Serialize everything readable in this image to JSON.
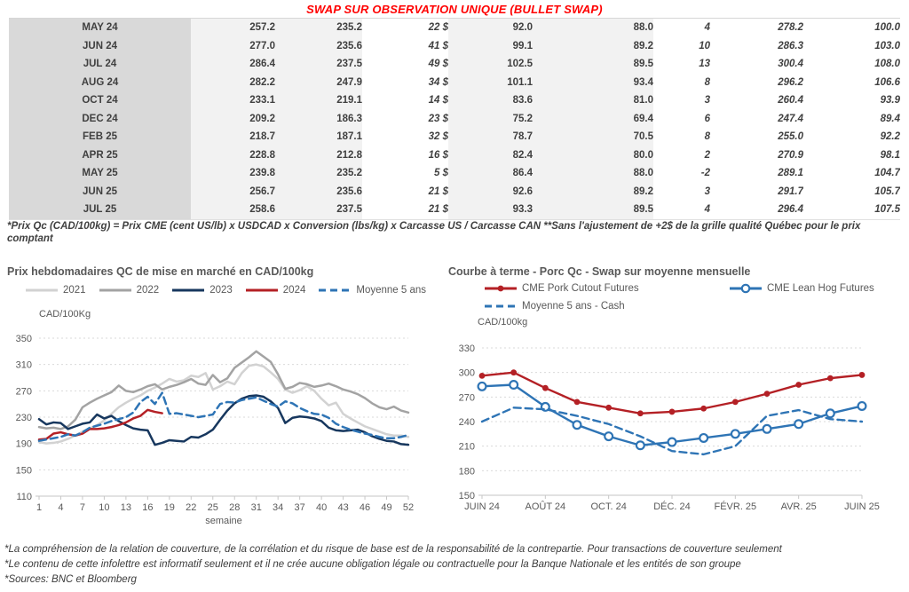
{
  "page": {
    "title": "SWAP SUR OBSERVATION UNIQUE (BULLET SWAP)",
    "title_color": "#ff0000"
  },
  "table": {
    "rows": [
      [
        "MAY 24",
        "257.2",
        "235.2",
        "22 $",
        "92.0",
        "88.0",
        "4",
        "278.2",
        "100.0"
      ],
      [
        "JUN 24",
        "277.0",
        "235.6",
        "41 $",
        "99.1",
        "89.2",
        "10",
        "286.3",
        "103.0"
      ],
      [
        "JUL 24",
        "286.4",
        "237.5",
        "49 $",
        "102.5",
        "89.5",
        "13",
        "300.4",
        "108.0"
      ],
      [
        "AUG 24",
        "282.2",
        "247.9",
        "34 $",
        "101.1",
        "93.4",
        "8",
        "296.2",
        "106.6"
      ],
      [
        "OCT 24",
        "233.1",
        "219.1",
        "14 $",
        "83.6",
        "81.0",
        "3",
        "260.4",
        "93.9"
      ],
      [
        "DEC 24",
        "209.2",
        "186.3",
        "23 $",
        "75.2",
        "69.4",
        "6",
        "247.4",
        "89.4"
      ],
      [
        "FEB 25",
        "218.7",
        "187.1",
        "32 $",
        "78.7",
        "70.5",
        "8",
        "255.0",
        "92.2"
      ],
      [
        "APR 25",
        "228.8",
        "212.8",
        "16 $",
        "82.4",
        "80.0",
        "2",
        "270.9",
        "98.1"
      ],
      [
        "MAY 25",
        "239.8",
        "235.2",
        "5 $",
        "86.4",
        "88.0",
        "-2",
        "289.1",
        "104.7"
      ],
      [
        "JUN 25",
        "256.7",
        "235.6",
        "21 $",
        "92.6",
        "89.2",
        "3",
        "291.7",
        "105.7"
      ],
      [
        "JUL 25",
        "258.6",
        "237.5",
        "21 $",
        "93.3",
        "89.5",
        "4",
        "296.4",
        "107.5"
      ]
    ],
    "footnote": "*Prix Qc (CAD/100kg) = Prix CME (cent US/lb) x USDCAD x Conversion (lbs/kg) x Carcasse US / Carcasse CAN **Sans l'ajustement de +2$ de la grille qualité Québec pour le prix comptant",
    "colors": {
      "positive": "#00a551",
      "negative": "#e00000",
      "swap_blue": "#1f5c8b",
      "month_bg": "#d9d9d9",
      "band_bg": "#f2f2f2"
    }
  },
  "chart_data": [
    {
      "type": "line",
      "title": "Prix hebdomadaires QC de mise en marché en CAD/100kg",
      "ylabel": "CAD/100Kg",
      "xlabel": "semaine",
      "ylim": [
        110,
        350
      ],
      "yticks": [
        110,
        150,
        190,
        230,
        270,
        310,
        350
      ],
      "xticks": [
        1,
        4,
        7,
        10,
        13,
        16,
        19,
        22,
        25,
        28,
        31,
        34,
        37,
        40,
        43,
        46,
        49,
        52
      ],
      "x_range": [
        1,
        52
      ],
      "grid": true,
      "legend_position": "top",
      "series": [
        {
          "name": "2021",
          "color": "#d2d2d2",
          "dash": null,
          "marker": null,
          "values": [
            192,
            190,
            191,
            193,
            197,
            202,
            208,
            213,
            218,
            225,
            235,
            245,
            252,
            258,
            263,
            270,
            275,
            281,
            288,
            284,
            286,
            293,
            291,
            297,
            272,
            277,
            284,
            280,
            297,
            308,
            310,
            307,
            298,
            288,
            272,
            267,
            271,
            277,
            270,
            258,
            248,
            252,
            235,
            228,
            222,
            216,
            212,
            208,
            204,
            202,
            202,
            200
          ]
        },
        {
          "name": "2022",
          "color": "#a3a3a3",
          "dash": null,
          "marker": null,
          "values": [
            215,
            213,
            214,
            212,
            216,
            226,
            245,
            252,
            258,
            263,
            268,
            278,
            270,
            268,
            272,
            277,
            280,
            272,
            276,
            279,
            283,
            288,
            281,
            279,
            294,
            283,
            289,
            305,
            313,
            321,
            330,
            322,
            314,
            295,
            273,
            276,
            282,
            280,
            276,
            278,
            281,
            277,
            272,
            269,
            265,
            259,
            251,
            245,
            242,
            246,
            240,
            237
          ]
        },
        {
          "name": "2023",
          "color": "#17375e",
          "dash": null,
          "marker": null,
          "values": [
            227,
            219,
            222,
            221,
            212,
            216,
            220,
            222,
            234,
            228,
            232,
            224,
            218,
            213,
            211,
            210,
            188,
            191,
            195,
            194,
            193,
            200,
            199,
            204,
            211,
            226,
            240,
            251,
            258,
            262,
            263,
            261,
            254,
            244,
            221,
            229,
            231,
            230,
            228,
            224,
            214,
            210,
            209,
            210,
            211,
            207,
            201,
            197,
            194,
            193,
            189,
            188
          ]
        },
        {
          "name": "2024",
          "color": "#b42025",
          "dash": null,
          "marker": null,
          "values": [
            196,
            197,
            205,
            207,
            204,
            202,
            205,
            212,
            212,
            213,
            215,
            218,
            222,
            228,
            232,
            241,
            238,
            236
          ]
        },
        {
          "name": "Moyenne 5 ans",
          "color": "#2e74b5",
          "dash": "8,5",
          "marker": null,
          "values": [
            194,
            196,
            198,
            200,
            204,
            202,
            207,
            214,
            217,
            220,
            224,
            227,
            230,
            237,
            253,
            261,
            250,
            267,
            235,
            236,
            234,
            232,
            230,
            232,
            234,
            250,
            253,
            252,
            256,
            258,
            260,
            255,
            250,
            246,
            254,
            251,
            244,
            239,
            235,
            234,
            229,
            220,
            215,
            211,
            208,
            205,
            203,
            200,
            198,
            198,
            200,
            203
          ]
        }
      ]
    },
    {
      "type": "line",
      "title": "Courbe à terme - Porc Qc - Swap sur moyenne mensuelle",
      "ylabel": "CAD/100kg",
      "xlabel": "",
      "ylim": [
        150,
        330
      ],
      "yticks": [
        150,
        180,
        210,
        240,
        270,
        300,
        330
      ],
      "x_count": 13,
      "xtick_positions": [
        0,
        2,
        4,
        6,
        8,
        10,
        12
      ],
      "xtick_labels": [
        "JUIN 24",
        "AOÛT 24",
        "OCT. 24",
        "DÉC. 24",
        "FÉVR. 25",
        "AVR. 25",
        "JUIN 25"
      ],
      "grid": true,
      "legend_position": "top",
      "series": [
        {
          "name": "CME Pork Cutout Futures",
          "color": "#b42025",
          "dash": null,
          "marker": "filled-circle",
          "values": [
            296,
            300,
            281,
            264,
            257,
            250,
            252,
            256,
            264,
            274,
            285,
            293,
            297
          ]
        },
        {
          "name": "CME Lean Hog Futures",
          "color": "#2e74b5",
          "dash": null,
          "marker": "open-circle",
          "values": [
            283,
            285,
            258,
            236,
            222,
            211,
            215,
            220,
            225,
            231,
            237,
            250,
            259
          ]
        },
        {
          "name": "Moyenne 5 ans - Cash",
          "color": "#2e74b5",
          "dash": "8,5",
          "marker": null,
          "values": [
            240,
            257,
            255,
            247,
            237,
            222,
            204,
            200,
            210,
            247,
            254,
            243,
            240
          ]
        }
      ]
    }
  ],
  "footnotes": [
    "*La compréhension de la relation de couverture, de la corrélation et du risque de base est de la responsabilité de la contrepartie. Pour transactions de couverture seulement",
    "*Le contenu de cette infolettre est informatif seulement et il ne crée aucune obligation légale ou contractuelle pour la Banque Nationale et les entités de son groupe",
    "*Sources: BNC et Bloomberg"
  ]
}
